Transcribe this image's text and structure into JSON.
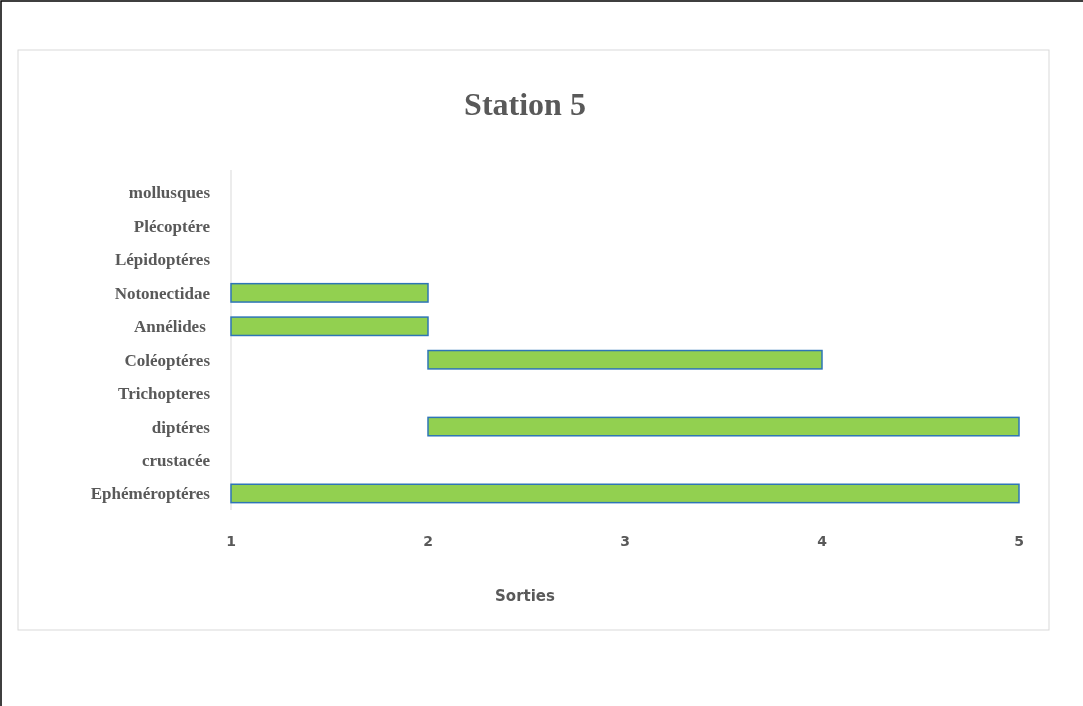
{
  "chart_data": {
    "type": "bar",
    "orientation": "horizontal",
    "title": "Station 5",
    "xlabel": "Sorties",
    "categories": [
      "mollusques",
      "Plécoptére",
      "Lépidoptéres",
      "Notonectidae",
      "Annélides ",
      "Coléoptéres",
      "Trichopteres",
      "diptéres",
      "crustacée",
      "Ephéméroptéres"
    ],
    "base": [
      null,
      null,
      null,
      1,
      1,
      2,
      null,
      2,
      null,
      1
    ],
    "values": [
      null,
      null,
      null,
      1,
      1,
      2,
      null,
      3,
      null,
      4
    ],
    "color": "#92d050",
    "xlim": [
      1,
      5
    ],
    "xticks": [
      1,
      2,
      3,
      4,
      5
    ],
    "grid": false
  }
}
